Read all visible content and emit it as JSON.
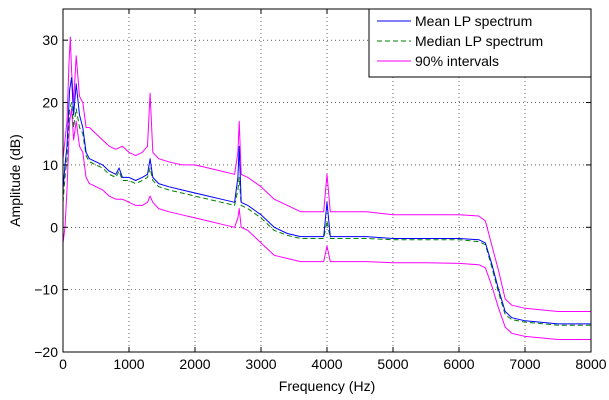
{
  "chart_data": {
    "type": "line",
    "title": "",
    "xlabel": "Frequency (Hz)",
    "ylabel": "Amplitude (dB)",
    "xlim": [
      0,
      8000
    ],
    "ylim": [
      -20,
      35
    ],
    "xticks": [
      0,
      1000,
      2000,
      3000,
      4000,
      5000,
      6000,
      7000,
      8000
    ],
    "xtick_labels": [
      "0",
      "1000",
      "2000",
      "3000",
      "4000",
      "5000",
      "6000",
      "7000",
      "8000"
    ],
    "yticks": [
      -20,
      -10,
      0,
      10,
      20,
      30
    ],
    "ytick_labels": [
      "−20",
      "−10",
      "0",
      "10",
      "20",
      "30"
    ],
    "grid": true,
    "legend_position": "top-right",
    "series": [
      {
        "name": "Mean LP spectrum",
        "color": "#0000ff",
        "style": "solid",
        "x": [
          0,
          30,
          60,
          100,
          130,
          160,
          200,
          250,
          300,
          350,
          400,
          500,
          600,
          700,
          800,
          850,
          900,
          1000,
          1100,
          1200,
          1280,
          1320,
          1360,
          1450,
          1600,
          1800,
          2000,
          2200,
          2400,
          2600,
          2650,
          2670,
          2700,
          2800,
          3000,
          3200,
          3400,
          3600,
          3800,
          3950,
          4000,
          4050,
          4200,
          4600,
          5000,
          5500,
          6000,
          6300,
          6400,
          6500,
          6600,
          6700,
          6800,
          7000,
          7500,
          8000
        ],
        "y": [
          6,
          10,
          13,
          22,
          24,
          18,
          23,
          18,
          16,
          12,
          11,
          10.5,
          10,
          9,
          8.5,
          9.5,
          8,
          8,
          7.5,
          8,
          8.5,
          11,
          8,
          7,
          6.5,
          6,
          5.5,
          5,
          4.5,
          4,
          8,
          13,
          4,
          3.5,
          2,
          0,
          -1,
          -1.5,
          -1.5,
          -1.5,
          4,
          -1.5,
          -1.5,
          -1.5,
          -1.8,
          -1.8,
          -1.8,
          -2,
          -2.5,
          -6,
          -10,
          -13.5,
          -14.5,
          -15,
          -15.5,
          -15.5
        ]
      },
      {
        "name": "Median LP spectrum",
        "color": "#007f00",
        "style": "dashed",
        "x": [
          0,
          30,
          60,
          100,
          130,
          160,
          200,
          250,
          300,
          350,
          400,
          500,
          600,
          700,
          800,
          850,
          900,
          1000,
          1100,
          1200,
          1280,
          1320,
          1360,
          1450,
          1600,
          1800,
          2000,
          2200,
          2400,
          2600,
          2650,
          2670,
          2700,
          2800,
          3000,
          3200,
          3400,
          3600,
          3800,
          3950,
          4000,
          4050,
          4200,
          4600,
          5000,
          5500,
          6000,
          6300,
          6400,
          6500,
          6600,
          6700,
          6800,
          7000,
          7500,
          8000
        ],
        "y": [
          4,
          8,
          11,
          19,
          20,
          16,
          19,
          16,
          15,
          11.5,
          10.5,
          10,
          9.5,
          8.5,
          8,
          9,
          7.5,
          7.5,
          7,
          7.5,
          8,
          9.5,
          7.5,
          6.5,
          6,
          5.5,
          5,
          4.5,
          4,
          3.5,
          6,
          8,
          3.5,
          3,
          1.5,
          -0.5,
          -1.3,
          -1.8,
          -1.8,
          -1.8,
          1,
          -1.8,
          -1.8,
          -1.8,
          -2,
          -2,
          -2,
          -2.3,
          -2.8,
          -6.5,
          -10.5,
          -14,
          -14.8,
          -15.2,
          -15.7,
          -15.7
        ]
      },
      {
        "name": "90% intervals",
        "color": "#ff00ff",
        "style": "solid",
        "x": [
          0,
          30,
          60,
          90,
          110,
          130,
          160,
          200,
          250,
          300,
          350,
          400,
          500,
          600,
          700,
          800,
          900,
          1000,
          1100,
          1200,
          1280,
          1320,
          1360,
          1450,
          1600,
          1800,
          2000,
          2200,
          2400,
          2600,
          2650,
          2670,
          2700,
          2800,
          3000,
          3200,
          3400,
          3600,
          3800,
          3950,
          4000,
          4050,
          4200,
          4600,
          5000,
          5500,
          6000,
          6300,
          6400,
          6500,
          6600,
          6700,
          6800,
          7000,
          7500,
          8000
        ],
        "y": [
          11,
          14,
          17,
          26,
          30.5,
          25,
          20,
          27.5,
          21,
          20,
          16,
          16,
          15,
          14,
          13,
          12.5,
          13,
          12,
          11.5,
          12,
          13,
          21.5,
          12,
          11,
          10.5,
          10,
          10,
          9.5,
          9,
          8.5,
          12,
          17,
          8.5,
          8,
          6.5,
          4.5,
          3.5,
          2.5,
          2.5,
          2.5,
          8.5,
          2.5,
          2.5,
          2.5,
          2,
          2,
          2,
          1.8,
          1,
          -3,
          -7,
          -11.5,
          -12.5,
          -13,
          -13.5,
          -13.5
        ]
      },
      {
        "name": "",
        "color": "#ff00ff",
        "style": "solid",
        "x": [
          0,
          30,
          60,
          100,
          130,
          160,
          200,
          250,
          300,
          350,
          400,
          500,
          600,
          700,
          800,
          900,
          1000,
          1100,
          1200,
          1280,
          1320,
          1360,
          1450,
          1600,
          1800,
          2000,
          2200,
          2400,
          2600,
          2650,
          2670,
          2700,
          2800,
          3000,
          3200,
          3400,
          3600,
          3800,
          3950,
          4000,
          4050,
          4200,
          4600,
          5000,
          5500,
          6000,
          6300,
          6400,
          6500,
          6600,
          6700,
          6800,
          7000,
          7500,
          8000
        ],
        "y": [
          -2.5,
          0,
          6,
          17,
          19,
          14,
          17,
          13,
          12,
          8,
          7,
          6.5,
          6,
          5,
          4.5,
          4.5,
          4,
          3.5,
          3.5,
          4,
          5,
          4,
          3,
          2.5,
          2,
          1.5,
          1,
          0.5,
          0,
          1.5,
          3,
          0,
          -0.5,
          -2.5,
          -4.5,
          -5,
          -5.5,
          -5.5,
          -5.5,
          -3,
          -5.5,
          -5.5,
          -5.5,
          -5.7,
          -5.7,
          -5.8,
          -6,
          -6.5,
          -9.5,
          -13,
          -16,
          -17,
          -17.5,
          -18,
          -18
        ]
      }
    ]
  }
}
